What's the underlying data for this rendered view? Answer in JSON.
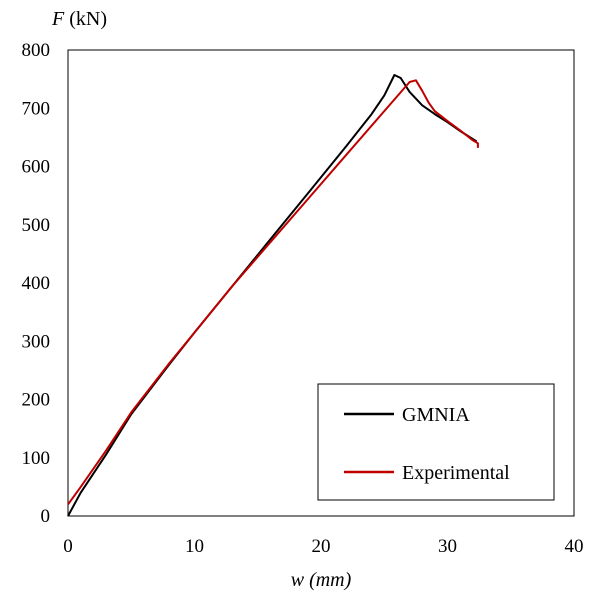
{
  "chart_data": {
    "type": "line",
    "ylabel_symbol": "F",
    "ylabel_unit": " (kN)",
    "xlabel_symbol": "w",
    "xlabel_unit": " (mm)",
    "xlim": [
      0,
      40
    ],
    "ylim": [
      0,
      800
    ],
    "xticks": [
      "0",
      "10",
      "20",
      "30",
      "40"
    ],
    "yticks": [
      "0",
      "100",
      "200",
      "300",
      "400",
      "500",
      "600",
      "700",
      "800"
    ],
    "grid": false,
    "legend_position": "bottom-right",
    "series": [
      {
        "name": "GMNIA",
        "color": "#000000",
        "x": [
          0,
          1,
          3,
          5,
          8,
          10,
          13,
          16,
          19,
          22,
          24,
          25,
          25.8,
          26.3,
          27,
          28,
          29,
          30,
          31,
          32.3
        ],
        "y": [
          0,
          40,
          105,
          175,
          260,
          315,
          395,
          475,
          555,
          635,
          690,
          722,
          757,
          752,
          728,
          705,
          690,
          676,
          661,
          643
        ]
      },
      {
        "name": "Experimental",
        "color": "#c00000",
        "x": [
          0,
          1,
          3,
          5,
          8,
          10,
          13,
          16,
          19,
          22,
          24,
          26,
          27,
          27.5,
          28,
          28.5,
          29,
          30,
          31,
          32,
          32.4,
          32.4
        ],
        "y": [
          20,
          50,
          112,
          178,
          262,
          315,
          395,
          470,
          545,
          620,
          670,
          720,
          745,
          748,
          730,
          710,
          695,
          678,
          662,
          645,
          640,
          632
        ]
      }
    ]
  }
}
